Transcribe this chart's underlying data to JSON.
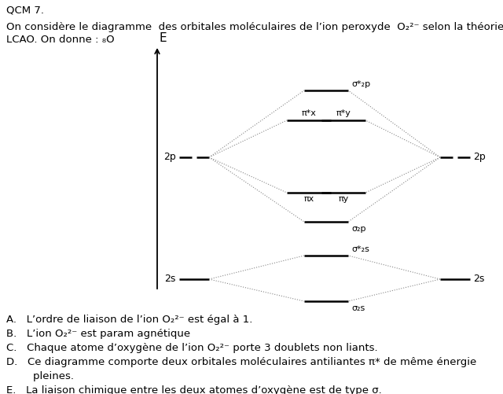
{
  "title_text": "QCM 7.",
  "intro_line1": "On considère le diagramme  des orbitales moléculaires de l’ion peroxyde  O₂²⁻ selon la théorie",
  "intro_line2": "LCAO. On donne : ₈O",
  "energy_label": "E",
  "left_label_2p": "2p",
  "left_label_2s": "2s",
  "right_label_2p": "2p",
  "right_label_2s": "2s",
  "mo_labels": {
    "sigma_star_2p": "σ*₂p",
    "pi_star_x": "π*x",
    "pi_star_y": "π*y",
    "pi_x": "πx",
    "pi_y": "πy",
    "sigma_2p": "σ₂p",
    "sigma_star_2s": "σ*₂s",
    "sigma_2s": "σ₂s"
  },
  "answers": [
    "A.  L’ordre de liaison de l’ion O₂²⁻ est égal à 1.",
    "B.  L’ion O₂²⁻ est param agnétique",
    "C.  Chaque atome d’oxygène de l’ion O₂²⁻ porte 3 doublets non liants.",
    "D.  Ce diagramme comporte deux orbitales moléculaires antiliantes π* de même énergie",
    "        pleines.",
    "E.  La liaison chimique entre les deux atomes d’oxygène est de type σ."
  ],
  "bg_color": "#ffffff",
  "line_color": "#000000",
  "dotted_color": "#888888",
  "font_size_main": 9.5,
  "font_size_label": 9,
  "font_size_mo": 8
}
